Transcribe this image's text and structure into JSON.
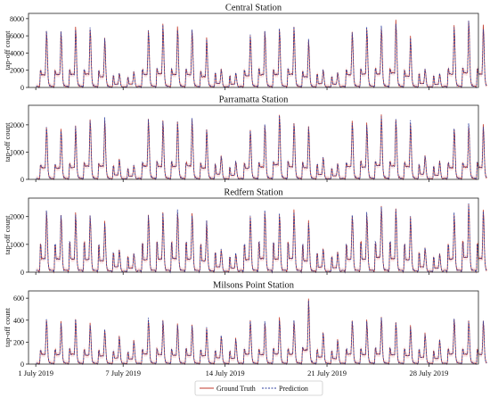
{
  "colors": {
    "ground_truth": "#c0392b",
    "prediction": "#2c3e9e",
    "band": "#f5c6c6",
    "frame": "#222222"
  },
  "legend": {
    "entries": [
      "Ground Truth",
      "Prediction"
    ],
    "placement": "bottom-center"
  },
  "x_axis": {
    "ticks": [
      {
        "day": 1,
        "label": "1 July 2019"
      },
      {
        "day": 7,
        "label": "7 July 2019"
      },
      {
        "day": 14,
        "label": "14 July 2019"
      },
      {
        "day": 21,
        "label": "21 July 2019"
      },
      {
        "day": 28,
        "label": "28 July 2019"
      }
    ],
    "range_days": [
      0.5,
      31.4
    ]
  },
  "chart_data": [
    {
      "type": "line",
      "title": "Central Station",
      "ylabel": "tap-off count",
      "ylim": [
        0,
        8400
      ],
      "yticks": [
        0,
        2000,
        4000,
        6000,
        8000
      ],
      "grid": false,
      "series": [
        {
          "name": "Ground Truth",
          "style": "solid"
        },
        {
          "name": "Prediction",
          "style": "dashed"
        }
      ],
      "daily": [
        [
          2600,
          6900
        ],
        [
          2500,
          7000
        ],
        [
          2600,
          7100
        ],
        [
          2700,
          7200
        ],
        [
          2500,
          5800
        ],
        [
          1800,
          1700
        ],
        [
          1500,
          1900
        ],
        [
          2700,
          7000
        ],
        [
          2800,
          7500
        ],
        [
          2800,
          7100
        ],
        [
          2700,
          7000
        ],
        [
          2400,
          5900
        ],
        [
          2100,
          2200
        ],
        [
          1700,
          1800
        ],
        [
          2600,
          6300
        ],
        [
          2800,
          6900
        ],
        [
          2600,
          7000
        ],
        [
          2900,
          7200
        ],
        [
          2400,
          5700
        ],
        [
          2000,
          2100
        ],
        [
          1600,
          1800
        ],
        [
          2700,
          6800
        ],
        [
          2800,
          7200
        ],
        [
          2900,
          7300
        ],
        [
          2800,
          7900
        ],
        [
          2600,
          6100
        ],
        [
          2000,
          2200
        ],
        [
          1700,
          1700
        ],
        [
          2800,
          7300
        ],
        [
          2900,
          8000
        ],
        [
          2800,
          7300
        ]
      ]
    },
    {
      "type": "line",
      "title": "Parramatta Station",
      "ylabel": "tap-off count",
      "ylim": [
        0,
        2650
      ],
      "yticks": [
        0,
        1000,
        2000
      ],
      "grid": false,
      "series": [
        {
          "name": "Ground Truth",
          "style": "solid"
        },
        {
          "name": "Prediction",
          "style": "dashed"
        }
      ],
      "daily": [
        [
          700,
          2000
        ],
        [
          700,
          1900
        ],
        [
          750,
          2000
        ],
        [
          800,
          2300
        ],
        [
          750,
          2300
        ],
        [
          650,
          750
        ],
        [
          500,
          550
        ],
        [
          800,
          2300
        ],
        [
          850,
          2200
        ],
        [
          850,
          2200
        ],
        [
          800,
          2300
        ],
        [
          750,
          1950
        ],
        [
          700,
          900
        ],
        [
          550,
          700
        ],
        [
          750,
          1900
        ],
        [
          800,
          2100
        ],
        [
          850,
          2500
        ],
        [
          850,
          2200
        ],
        [
          800,
          2000
        ],
        [
          700,
          850
        ],
        [
          500,
          600
        ],
        [
          800,
          2200
        ],
        [
          850,
          2100
        ],
        [
          850,
          2400
        ],
        [
          850,
          2300
        ],
        [
          800,
          2200
        ],
        [
          700,
          900
        ],
        [
          600,
          700
        ],
        [
          800,
          2000
        ],
        [
          800,
          2100
        ],
        [
          800,
          2050
        ]
      ]
    },
    {
      "type": "line",
      "title": "Redfern Station",
      "ylabel": "tap-off count",
      "ylim": [
        0,
        2600
      ],
      "yticks": [
        0,
        1000,
        2000
      ],
      "grid": false,
      "series": [
        {
          "name": "Ground Truth",
          "style": "solid"
        },
        {
          "name": "Prediction",
          "style": "dashed"
        }
      ],
      "daily": [
        [
          1300,
          2300
        ],
        [
          1300,
          2200
        ],
        [
          1400,
          2200
        ],
        [
          1400,
          2100
        ],
        [
          1300,
          1900
        ],
        [
          900,
          850
        ],
        [
          700,
          700
        ],
        [
          1300,
          2100
        ],
        [
          1400,
          2200
        ],
        [
          1400,
          2300
        ],
        [
          1400,
          2200
        ],
        [
          1300,
          1900
        ],
        [
          900,
          850
        ],
        [
          700,
          700
        ],
        [
          1300,
          2100
        ],
        [
          1400,
          2300
        ],
        [
          1400,
          2200
        ],
        [
          1400,
          2300
        ],
        [
          1300,
          1900
        ],
        [
          850,
          850
        ],
        [
          700,
          750
        ],
        [
          1300,
          2200
        ],
        [
          1400,
          2200
        ],
        [
          1400,
          2500
        ],
        [
          1400,
          2300
        ],
        [
          1300,
          2100
        ],
        [
          900,
          900
        ],
        [
          700,
          700
        ],
        [
          1300,
          2200
        ],
        [
          1400,
          2500
        ],
        [
          1300,
          2300
        ]
      ]
    },
    {
      "type": "line",
      "title": "Milsons Point Station",
      "ylabel": "tap-off count",
      "ylim": [
        0,
        650
      ],
      "yticks": [
        0,
        200,
        400,
        600
      ],
      "grid": false,
      "series": [
        {
          "name": "Ground Truth",
          "style": "solid"
        },
        {
          "name": "Prediction",
          "style": "dashed"
        }
      ],
      "daily": [
        [
          160,
          420
        ],
        [
          170,
          400
        ],
        [
          180,
          420
        ],
        [
          170,
          380
        ],
        [
          160,
          340
        ],
        [
          150,
          260
        ],
        [
          140,
          220
        ],
        [
          170,
          430
        ],
        [
          180,
          410
        ],
        [
          180,
          380
        ],
        [
          180,
          370
        ],
        [
          170,
          350
        ],
        [
          160,
          270
        ],
        [
          150,
          240
        ],
        [
          180,
          420
        ],
        [
          170,
          400
        ],
        [
          190,
          430
        ],
        [
          180,
          420
        ],
        [
          200,
          600
        ],
        [
          170,
          300
        ],
        [
          150,
          230
        ],
        [
          180,
          420
        ],
        [
          180,
          410
        ],
        [
          190,
          430
        ],
        [
          190,
          400
        ],
        [
          180,
          360
        ],
        [
          170,
          290
        ],
        [
          150,
          240
        ],
        [
          180,
          430
        ],
        [
          180,
          420
        ],
        [
          170,
          410
        ]
      ]
    }
  ]
}
